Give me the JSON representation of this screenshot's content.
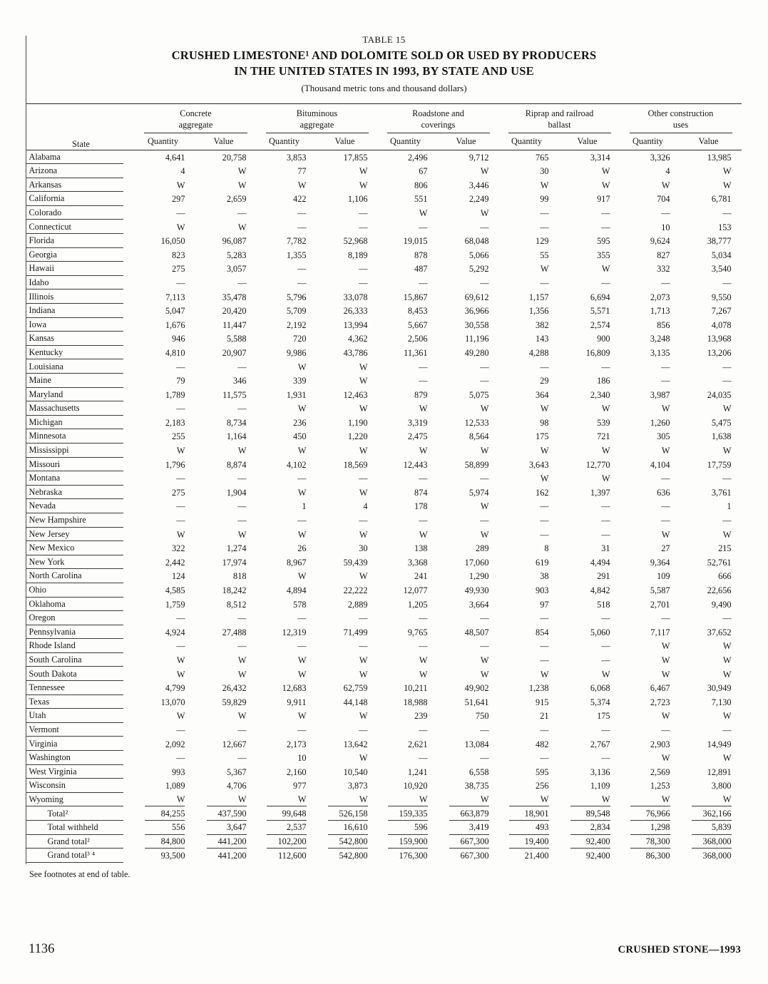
{
  "document": {
    "table_label": "TABLE 15",
    "title_line1": "CRUSHED LIMESTONE¹ AND DOLOMITE SOLD OR USED BY PRODUCERS",
    "title_line2": "IN THE UNITED STATES IN 1993, BY STATE AND USE",
    "subtitle": "(Thousand metric tons and thousand dollars)",
    "footnote": "See footnotes at end of table.",
    "page_number": "1136",
    "running_footer": "CRUSHED STONE—1993"
  },
  "table": {
    "state_header": "State",
    "column_groups": [
      {
        "line1": "Concrete",
        "line2": "aggregate"
      },
      {
        "line1": "Bituminous",
        "line2": "aggregate"
      },
      {
        "line1": "Roadstone and",
        "line2": "coverings"
      },
      {
        "line1": "Riprap and railroad",
        "line2": "ballast"
      },
      {
        "line1": "Other construction",
        "line2": "uses"
      }
    ],
    "subcolumns": [
      "Quantity",
      "Value"
    ],
    "rows": [
      {
        "state": "Alabama",
        "values": [
          "4,641",
          "20,758",
          "3,853",
          "17,855",
          "2,496",
          "9,712",
          "765",
          "3,314",
          "3,326",
          "13,985"
        ]
      },
      {
        "state": "Arizona",
        "values": [
          "4",
          "W",
          "77",
          "W",
          "67",
          "W",
          "30",
          "W",
          "4",
          "W"
        ]
      },
      {
        "state": "Arkansas",
        "values": [
          "W",
          "W",
          "W",
          "W",
          "806",
          "3,446",
          "W",
          "W",
          "W",
          "W"
        ]
      },
      {
        "state": "California",
        "values": [
          "297",
          "2,659",
          "422",
          "1,106",
          "551",
          "2,249",
          "99",
          "917",
          "704",
          "6,781"
        ]
      },
      {
        "state": "Colorado",
        "values": [
          "—",
          "—",
          "—",
          "—",
          "W",
          "W",
          "—",
          "—",
          "—",
          "—"
        ]
      },
      {
        "state": "Connecticut",
        "values": [
          "W",
          "W",
          "—",
          "—",
          "—",
          "—",
          "—",
          "—",
          "10",
          "153"
        ]
      },
      {
        "state": "Florida",
        "values": [
          "16,050",
          "96,087",
          "7,782",
          "52,968",
          "19,015",
          "68,048",
          "129",
          "595",
          "9,624",
          "38,777"
        ]
      },
      {
        "state": "Georgia",
        "values": [
          "823",
          "5,283",
          "1,355",
          "8,189",
          "878",
          "5,066",
          "55",
          "355",
          "827",
          "5,034"
        ]
      },
      {
        "state": "Hawaii",
        "values": [
          "275",
          "3,057",
          "—",
          "—",
          "487",
          "5,292",
          "W",
          "W",
          "332",
          "3,540"
        ]
      },
      {
        "state": "Idaho",
        "values": [
          "—",
          "—",
          "—",
          "—",
          "—",
          "—",
          "—",
          "—",
          "—",
          "—"
        ]
      },
      {
        "state": "Illinois",
        "values": [
          "7,113",
          "35,478",
          "5,796",
          "33,078",
          "15,867",
          "69,612",
          "1,157",
          "6,694",
          "2,073",
          "9,550"
        ]
      },
      {
        "state": "Indiana",
        "values": [
          "5,047",
          "20,420",
          "5,709",
          "26,333",
          "8,453",
          "36,966",
          "1,356",
          "5,571",
          "1,713",
          "7,267"
        ]
      },
      {
        "state": "Iowa",
        "values": [
          "1,676",
          "11,447",
          "2,192",
          "13,994",
          "5,667",
          "30,558",
          "382",
          "2,574",
          "856",
          "4,078"
        ]
      },
      {
        "state": "Kansas",
        "values": [
          "946",
          "5,588",
          "720",
          "4,362",
          "2,506",
          "11,196",
          "143",
          "900",
          "3,248",
          "13,968"
        ]
      },
      {
        "state": "Kentucky",
        "values": [
          "4,810",
          "20,907",
          "9,986",
          "43,786",
          "11,361",
          "49,280",
          "4,288",
          "16,809",
          "3,135",
          "13,206"
        ]
      },
      {
        "state": "Louisiana",
        "values": [
          "—",
          "—",
          "W",
          "W",
          "—",
          "—",
          "—",
          "—",
          "—",
          "—"
        ]
      },
      {
        "state": "Maine",
        "values": [
          "79",
          "346",
          "339",
          "W",
          "—",
          "—",
          "29",
          "186",
          "—",
          "—"
        ]
      },
      {
        "state": "Maryland",
        "values": [
          "1,789",
          "11,575",
          "1,931",
          "12,463",
          "879",
          "5,075",
          "364",
          "2,340",
          "3,987",
          "24,035"
        ]
      },
      {
        "state": "Massachusetts",
        "values": [
          "—",
          "—",
          "W",
          "W",
          "W",
          "W",
          "W",
          "W",
          "W",
          "W"
        ]
      },
      {
        "state": "Michigan",
        "values": [
          "2,183",
          "8,734",
          "236",
          "1,190",
          "3,319",
          "12,533",
          "98",
          "539",
          "1,260",
          "5,475"
        ]
      },
      {
        "state": "Minnesota",
        "values": [
          "255",
          "1,164",
          "450",
          "1,220",
          "2,475",
          "8,564",
          "175",
          "721",
          "305",
          "1,638"
        ]
      },
      {
        "state": "Mississippi",
        "values": [
          "W",
          "W",
          "W",
          "W",
          "W",
          "W",
          "W",
          "W",
          "W",
          "W"
        ]
      },
      {
        "state": "Missouri",
        "values": [
          "1,796",
          "8,874",
          "4,102",
          "18,569",
          "12,443",
          "58,899",
          "3,643",
          "12,770",
          "4,104",
          "17,759"
        ]
      },
      {
        "state": "Montana",
        "values": [
          "—",
          "—",
          "—",
          "—",
          "—",
          "—",
          "W",
          "W",
          "—",
          "—"
        ]
      },
      {
        "state": "Nebraska",
        "values": [
          "275",
          "1,904",
          "W",
          "W",
          "874",
          "5,974",
          "162",
          "1,397",
          "636",
          "3,761"
        ]
      },
      {
        "state": "Nevada",
        "values": [
          "—",
          "—",
          "1",
          "4",
          "178",
          "W",
          "—",
          "—",
          "—",
          "1"
        ]
      },
      {
        "state": "New Hampshire",
        "values": [
          "—",
          "—",
          "—",
          "—",
          "—",
          "—",
          "—",
          "—",
          "—",
          "—"
        ]
      },
      {
        "state": "New Jersey",
        "values": [
          "W",
          "W",
          "W",
          "W",
          "W",
          "W",
          "—",
          "—",
          "W",
          "W"
        ]
      },
      {
        "state": "New Mexico",
        "values": [
          "322",
          "1,274",
          "26",
          "30",
          "138",
          "289",
          "8",
          "31",
          "27",
          "215"
        ]
      },
      {
        "state": "New York",
        "values": [
          "2,442",
          "17,974",
          "8,967",
          "59,439",
          "3,368",
          "17,060",
          "619",
          "4,494",
          "9,364",
          "52,761"
        ]
      },
      {
        "state": "North Carolina",
        "values": [
          "124",
          "818",
          "W",
          "W",
          "241",
          "1,290",
          "38",
          "291",
          "109",
          "666"
        ]
      },
      {
        "state": "Ohio",
        "values": [
          "4,585",
          "18,242",
          "4,894",
          "22,222",
          "12,077",
          "49,930",
          "903",
          "4,842",
          "5,587",
          "22,656"
        ]
      },
      {
        "state": "Oklahoma",
        "values": [
          "1,759",
          "8,512",
          "578",
          "2,889",
          "1,205",
          "3,664",
          "97",
          "518",
          "2,701",
          "9,490"
        ]
      },
      {
        "state": "Oregon",
        "values": [
          "—",
          "—",
          "—",
          "—",
          "—",
          "—",
          "—",
          "—",
          "—",
          "—"
        ]
      },
      {
        "state": "Pennsylvania",
        "values": [
          "4,924",
          "27,488",
          "12,319",
          "71,499",
          "9,765",
          "48,507",
          "854",
          "5,060",
          "7,117",
          "37,652"
        ]
      },
      {
        "state": "Rhode Island",
        "values": [
          "—",
          "—",
          "—",
          "—",
          "—",
          "—",
          "—",
          "—",
          "W",
          "W"
        ]
      },
      {
        "state": "South Carolina",
        "values": [
          "W",
          "W",
          "W",
          "W",
          "W",
          "W",
          "—",
          "—",
          "W",
          "W"
        ]
      },
      {
        "state": "South Dakota",
        "values": [
          "W",
          "W",
          "W",
          "W",
          "W",
          "W",
          "W",
          "W",
          "W",
          "W"
        ]
      },
      {
        "state": "Tennessee",
        "values": [
          "4,799",
          "26,432",
          "12,683",
          "62,759",
          "10,211",
          "49,902",
          "1,238",
          "6,068",
          "6,467",
          "30,949"
        ]
      },
      {
        "state": "Texas",
        "values": [
          "13,070",
          "59,829",
          "9,911",
          "44,148",
          "18,988",
          "51,641",
          "915",
          "5,374",
          "2,723",
          "7,130"
        ]
      },
      {
        "state": "Utah",
        "values": [
          "W",
          "W",
          "W",
          "W",
          "239",
          "750",
          "21",
          "175",
          "W",
          "W"
        ]
      },
      {
        "state": "Vermont",
        "values": [
          "—",
          "—",
          "—",
          "—",
          "—",
          "—",
          "—",
          "—",
          "—",
          "—"
        ]
      },
      {
        "state": "Virginia",
        "values": [
          "2,092",
          "12,667",
          "2,173",
          "13,642",
          "2,621",
          "13,084",
          "482",
          "2,767",
          "2,903",
          "14,949"
        ]
      },
      {
        "state": "Washington",
        "values": [
          "—",
          "—",
          "10",
          "W",
          "—",
          "—",
          "—",
          "—",
          "W",
          "W"
        ]
      },
      {
        "state": "West Virginia",
        "values": [
          "993",
          "5,367",
          "2,160",
          "10,540",
          "1,241",
          "6,558",
          "595",
          "3,136",
          "2,569",
          "12,891"
        ]
      },
      {
        "state": "Wisconsin",
        "values": [
          "1,089",
          "4,706",
          "977",
          "3,873",
          "10,920",
          "38,735",
          "256",
          "1,109",
          "1,253",
          "3,800"
        ]
      },
      {
        "state": "Wyoming",
        "type": "ruled",
        "values": [
          "W",
          "W",
          "W",
          "W",
          "W",
          "W",
          "W",
          "W",
          "W",
          "W"
        ]
      },
      {
        "state": "Total²",
        "type": "total",
        "values": [
          "84,255",
          "437,590",
          "99,648",
          "526,158",
          "159,335",
          "663,879",
          "18,901",
          "89,548",
          "76,966",
          "362,166"
        ]
      },
      {
        "state": "Total withheld",
        "type": "total",
        "values": [
          "556",
          "3,647",
          "2,537",
          "16,610",
          "596",
          "3,419",
          "493",
          "2,834",
          "1,298",
          "5,839"
        ]
      },
      {
        "state": "Grand total²",
        "type": "total",
        "values": [
          "84,800",
          "441,200",
          "102,200",
          "542,800",
          "159,900",
          "667,300",
          "19,400",
          "92,400",
          "78,300",
          "368,000"
        ]
      },
      {
        "state": "Grand total³ ⁴",
        "type": "total-last",
        "values": [
          "93,500",
          "441,200",
          "112,600",
          "542,800",
          "176,300",
          "667,300",
          "21,400",
          "92,400",
          "86,300",
          "368,000"
        ]
      }
    ]
  }
}
